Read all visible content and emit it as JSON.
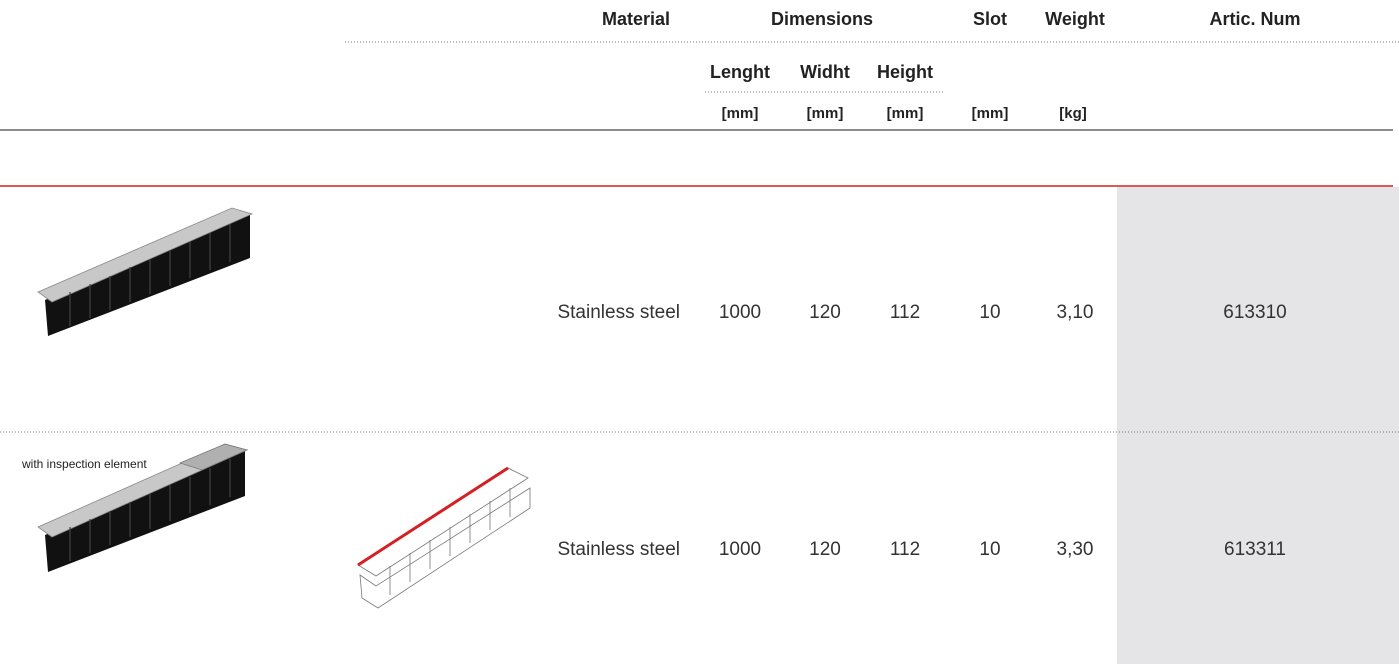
{
  "header": {
    "columns": [
      "Material",
      "Dimensions",
      "Slot",
      "Weight",
      "Artic. Num"
    ],
    "dimensions": [
      "Lenght",
      "Widht",
      "Height"
    ],
    "units": [
      "[mm]",
      "[mm]",
      "[mm]",
      "[mm]",
      "[kg]"
    ]
  },
  "rows": [
    {
      "note": null,
      "material": "Stainless steel",
      "length": 1000,
      "width": 120,
      "height": 112,
      "slot": 10,
      "weight": "3,10",
      "article": 613310
    },
    {
      "note": "with inspection element",
      "material": "Stainless steel",
      "length": 1000,
      "width": 120,
      "height": 112,
      "slot": 10,
      "weight": "3,30",
      "article": 613311
    }
  ]
}
